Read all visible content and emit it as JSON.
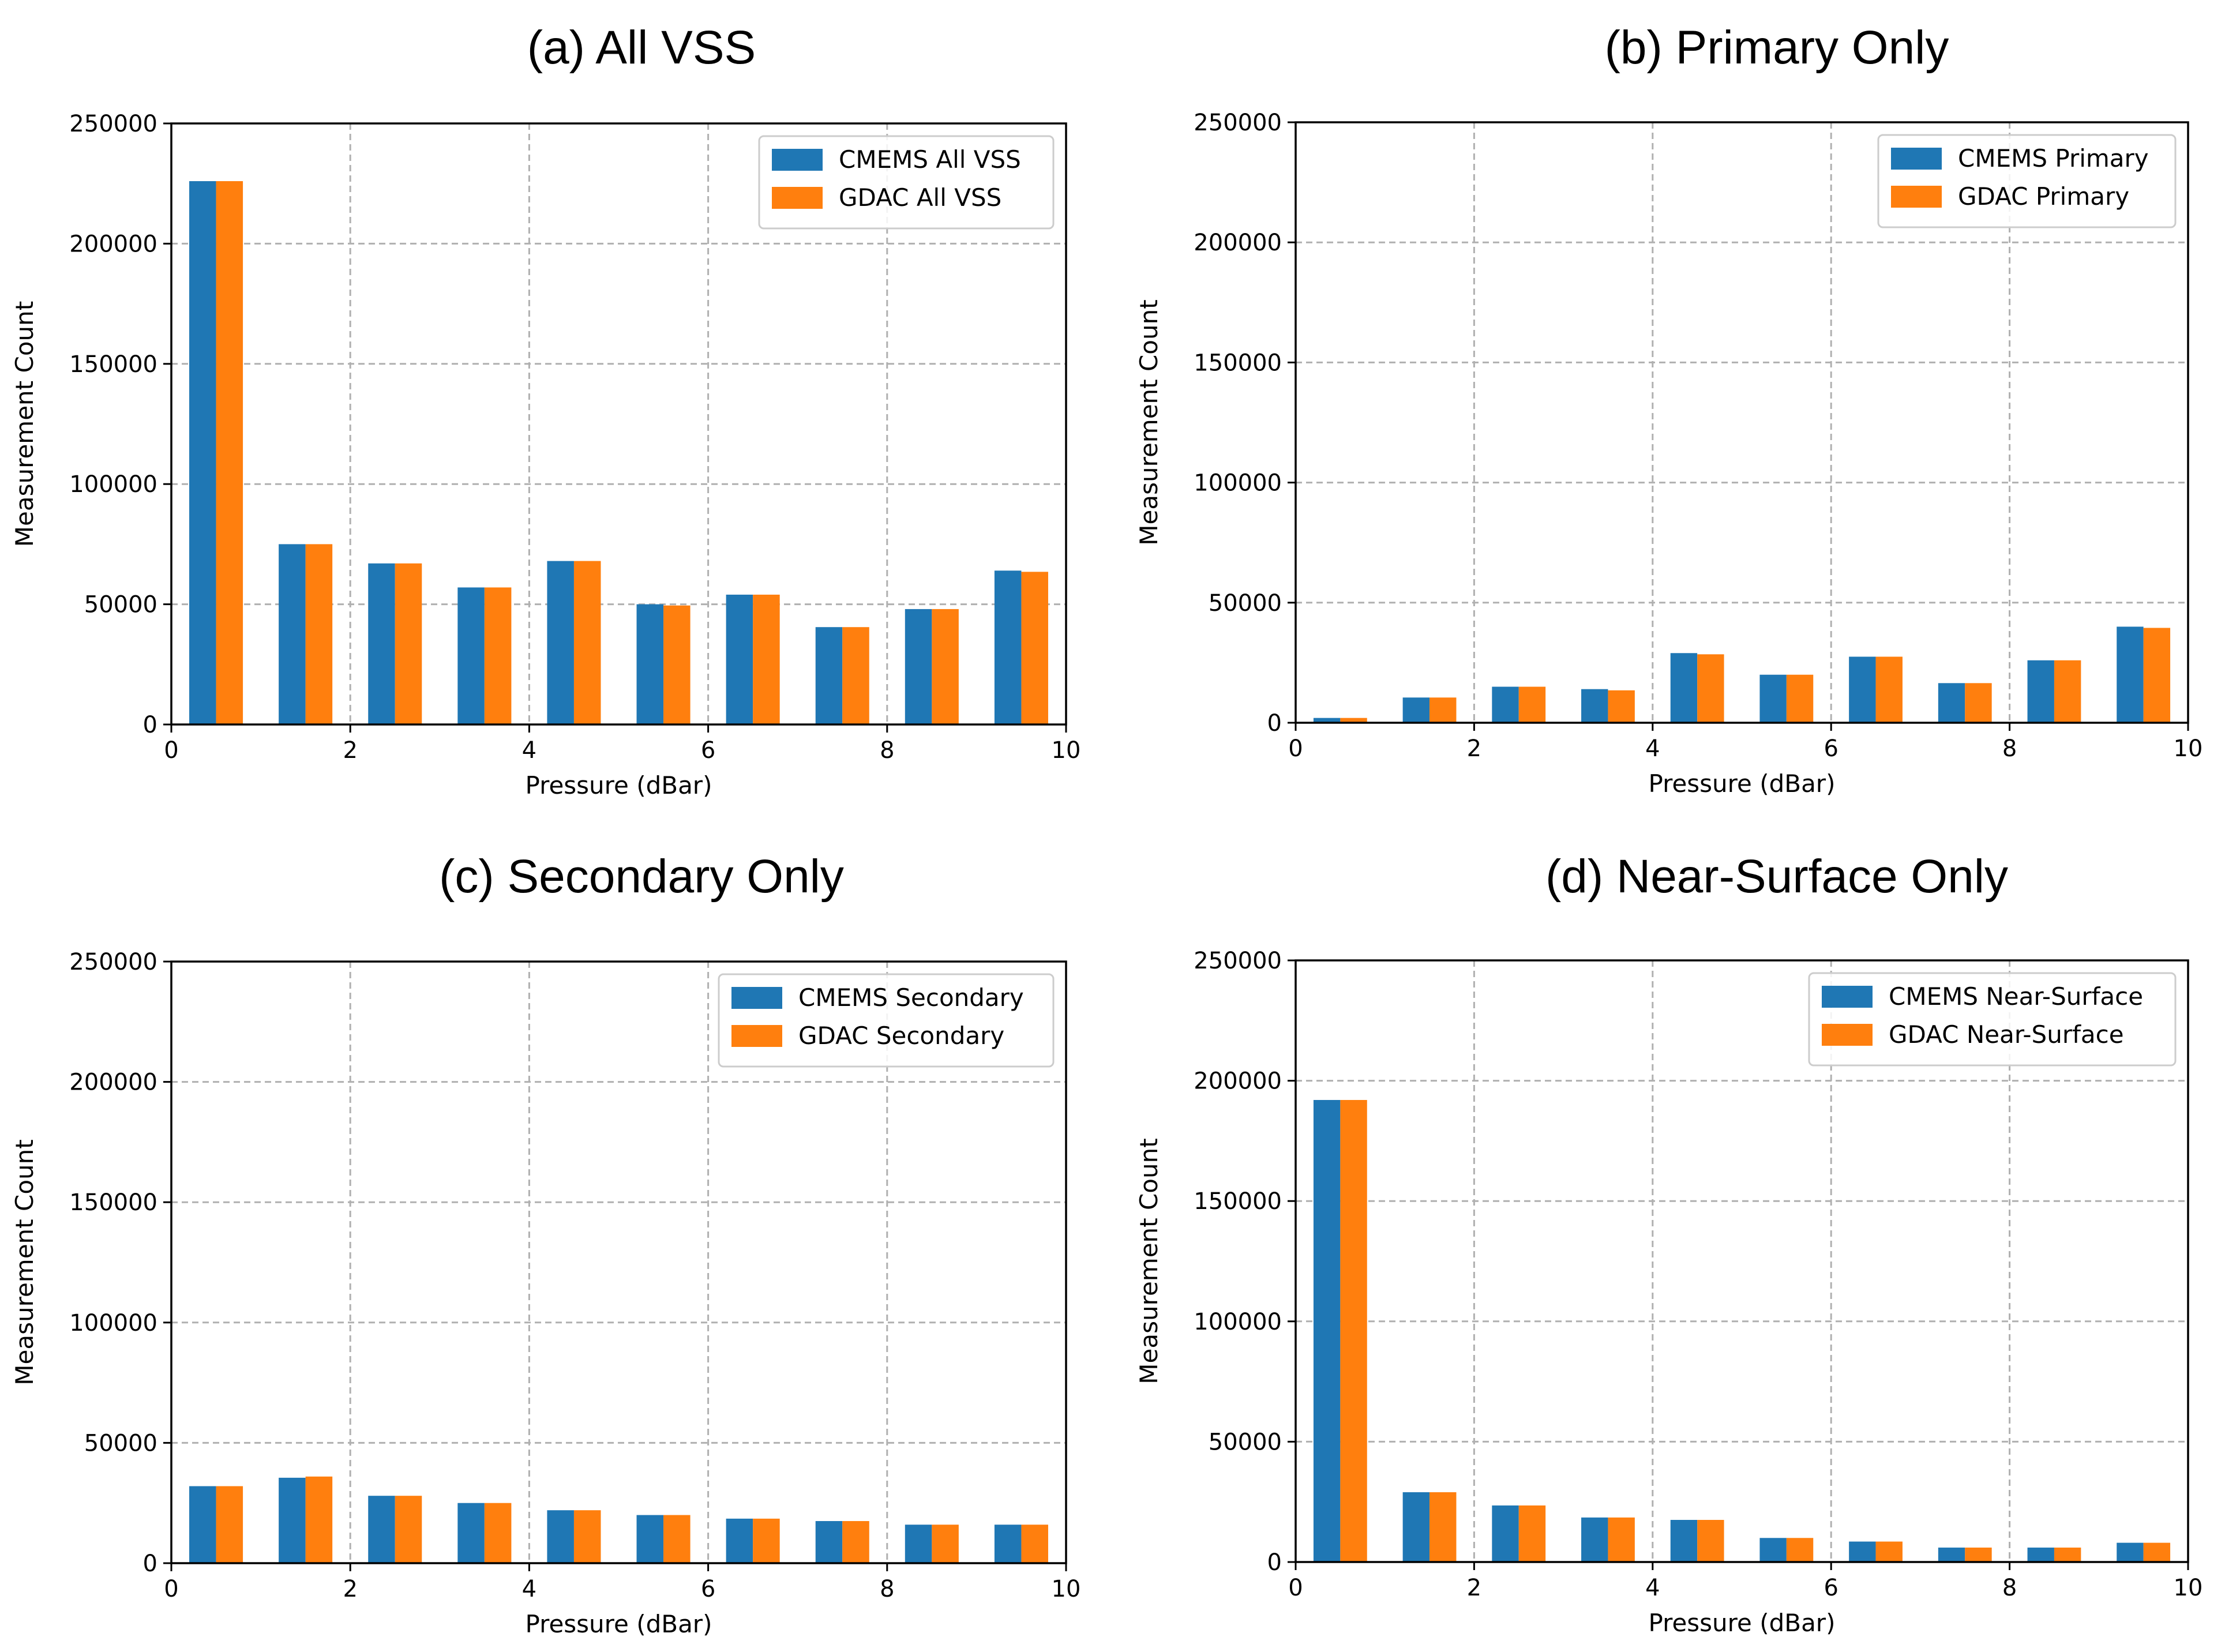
{
  "chart_data": [
    {
      "type": "bar",
      "title": "(a) All VSS",
      "xlabel": "Pressure (dBar)",
      "ylabel": "Measurement Count",
      "x": [
        0.5,
        1.5,
        2.5,
        3.5,
        4.5,
        5.5,
        6.5,
        7.5,
        8.5,
        9.5
      ],
      "xlim": [
        0,
        10
      ],
      "ylim": [
        0,
        250000
      ],
      "xticks": [
        "0",
        "2",
        "4",
        "6",
        "8",
        "10"
      ],
      "yticks": [
        "0",
        "50000",
        "100000",
        "150000",
        "200000",
        "250000"
      ],
      "grid": true,
      "legend_position": "top-right",
      "series": [
        {
          "name": "CMEMS All VSS",
          "color": "#1f77b4",
          "values": [
            226000,
            75000,
            67000,
            57000,
            68000,
            50000,
            54000,
            40500,
            48000,
            64000
          ]
        },
        {
          "name": "GDAC All VSS",
          "color": "#ff7f0e",
          "values": [
            226000,
            75000,
            67000,
            57000,
            68000,
            49500,
            54000,
            40500,
            48000,
            63500
          ]
        }
      ]
    },
    {
      "type": "bar",
      "title": "(b) Primary Only",
      "xlabel": "Pressure (dBar)",
      "ylabel": "Measurement Count",
      "x": [
        0.5,
        1.5,
        2.5,
        3.5,
        4.5,
        5.5,
        6.5,
        7.5,
        8.5,
        9.5
      ],
      "xlim": [
        0,
        10
      ],
      "ylim": [
        0,
        250000
      ],
      "xticks": [
        "0",
        "2",
        "4",
        "6",
        "8",
        "10"
      ],
      "yticks": [
        "0",
        "50000",
        "100000",
        "150000",
        "200000",
        "250000"
      ],
      "grid": true,
      "legend_position": "top-right",
      "series": [
        {
          "name": "CMEMS Primary",
          "color": "#1f77b4",
          "values": [
            2000,
            10500,
            15000,
            14000,
            29000,
            20000,
            27500,
            16500,
            26000,
            40000
          ]
        },
        {
          "name": "GDAC Primary",
          "color": "#ff7f0e",
          "values": [
            2000,
            10500,
            15000,
            13500,
            28500,
            20000,
            27500,
            16500,
            26000,
            39500
          ]
        }
      ]
    },
    {
      "type": "bar",
      "title": "(c) Secondary Only",
      "xlabel": "Pressure (dBar)",
      "ylabel": "Measurement Count",
      "x": [
        0.5,
        1.5,
        2.5,
        3.5,
        4.5,
        5.5,
        6.5,
        7.5,
        8.5,
        9.5
      ],
      "xlim": [
        0,
        10
      ],
      "ylim": [
        0,
        250000
      ],
      "xticks": [
        "0",
        "2",
        "4",
        "6",
        "8",
        "10"
      ],
      "yticks": [
        "0",
        "50000",
        "100000",
        "150000",
        "200000",
        "250000"
      ],
      "grid": true,
      "legend_position": "top-right",
      "series": [
        {
          "name": "CMEMS Secondary",
          "color": "#1f77b4",
          "values": [
            32000,
            35500,
            28000,
            25000,
            22000,
            20000,
            18500,
            17500,
            16000,
            16000
          ]
        },
        {
          "name": "GDAC Secondary",
          "color": "#ff7f0e",
          "values": [
            32000,
            36000,
            28000,
            25000,
            22000,
            20000,
            18500,
            17500,
            16000,
            16000
          ]
        }
      ]
    },
    {
      "type": "bar",
      "title": "(d) Near-Surface Only",
      "xlabel": "Pressure (dBar)",
      "ylabel": "Measurement Count",
      "x": [
        0.5,
        1.5,
        2.5,
        3.5,
        4.5,
        5.5,
        6.5,
        7.5,
        8.5,
        9.5
      ],
      "xlim": [
        0,
        10
      ],
      "ylim": [
        0,
        250000
      ],
      "xticks": [
        "0",
        "2",
        "4",
        "6",
        "8",
        "10"
      ],
      "yticks": [
        "0",
        "50000",
        "100000",
        "150000",
        "200000",
        "250000"
      ],
      "grid": true,
      "legend_position": "top-right",
      "series": [
        {
          "name": "CMEMS Near-Surface",
          "color": "#1f77b4",
          "values": [
            192000,
            29000,
            23500,
            18500,
            17500,
            10000,
            8500,
            6000,
            6000,
            8000
          ]
        },
        {
          "name": "GDAC Near-Surface",
          "color": "#ff7f0e",
          "values": [
            192000,
            29000,
            23500,
            18500,
            17500,
            10000,
            8500,
            6000,
            6000,
            8000
          ]
        }
      ]
    }
  ]
}
